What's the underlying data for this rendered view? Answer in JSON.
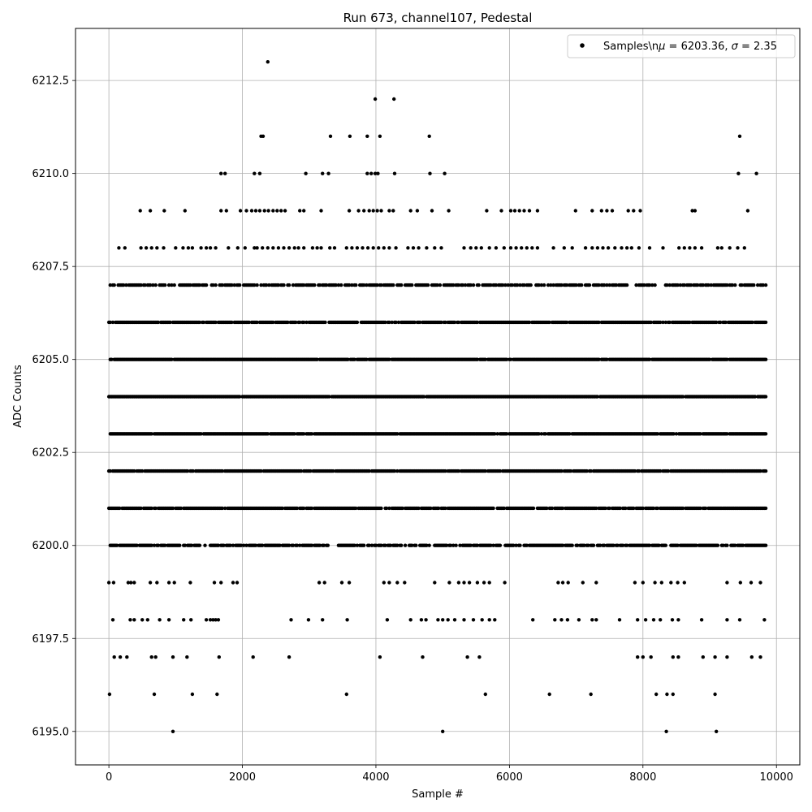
{
  "chart_data": {
    "type": "scatter",
    "title": "Run 673, channel107, Pedestal",
    "xlabel": "Sample #",
    "ylabel": "ADC Counts",
    "xlim": [
      -500,
      10350
    ],
    "ylim": [
      6194.1,
      6213.9
    ],
    "xticks": [
      0,
      2000,
      4000,
      6000,
      8000,
      10000
    ],
    "xtick_labels": [
      "0",
      "2000",
      "4000",
      "6000",
      "8000",
      "10000"
    ],
    "yticks": [
      6195.0,
      6197.5,
      6200.0,
      6202.5,
      6205.0,
      6207.5,
      6210.0,
      6212.5
    ],
    "ytick_labels": [
      "6195.0",
      "6197.5",
      "6200.0",
      "6202.5",
      "6205.0",
      "6207.5",
      "6210.0",
      "6212.5"
    ],
    "grid": true,
    "legend": {
      "position": "top-right",
      "marker_color": "#000000",
      "label": "Samples\\nμ = 6203.36, σ = 2.35"
    },
    "x_range": [
      0,
      9840
    ],
    "stats": {
      "mean": 6203.36,
      "sigma": 2.35
    },
    "series": [
      {
        "color": "#000000",
        "levels": [
          {
            "y": 6200,
            "density": 0.78
          },
          {
            "y": 6201,
            "density": 0.92
          },
          {
            "y": 6202,
            "density": 0.95
          },
          {
            "y": 6203,
            "density": 0.97
          },
          {
            "y": 6204,
            "density": 0.97
          },
          {
            "y": 6205,
            "density": 0.96
          },
          {
            "y": 6206,
            "density": 0.93
          },
          {
            "y": 6207,
            "density": 0.72
          }
        ],
        "points": [
          [
            10,
            6196
          ],
          [
            680,
            6196
          ],
          [
            1250,
            6196
          ],
          [
            1620,
            6196
          ],
          [
            3560,
            6196
          ],
          [
            5640,
            6196
          ],
          [
            6600,
            6196
          ],
          [
            7220,
            6196
          ],
          [
            8360,
            6196
          ],
          [
            8450,
            6196
          ],
          [
            8200,
            6196
          ],
          [
            9080,
            6196
          ],
          [
            960,
            6195
          ],
          [
            5000,
            6195
          ],
          [
            8350,
            6195
          ],
          [
            9100,
            6195
          ],
          [
            80,
            6197
          ],
          [
            170,
            6197
          ],
          [
            270,
            6197
          ],
          [
            640,
            6197
          ],
          [
            700,
            6197
          ],
          [
            960,
            6197
          ],
          [
            1170,
            6197
          ],
          [
            1650,
            6197
          ],
          [
            2160,
            6197
          ],
          [
            2700,
            6197
          ],
          [
            4060,
            6197
          ],
          [
            4700,
            6197
          ],
          [
            5370,
            6197
          ],
          [
            5550,
            6197
          ],
          [
            7920,
            6197
          ],
          [
            8000,
            6197
          ],
          [
            8120,
            6197
          ],
          [
            8450,
            6197
          ],
          [
            8530,
            6197
          ],
          [
            8900,
            6197
          ],
          [
            9080,
            6197
          ],
          [
            9260,
            6197
          ],
          [
            9630,
            6197
          ],
          [
            9760,
            6197
          ],
          [
            60,
            6198
          ],
          [
            320,
            6198
          ],
          [
            380,
            6198
          ],
          [
            500,
            6198
          ],
          [
            580,
            6198
          ],
          [
            760,
            6198
          ],
          [
            900,
            6198
          ],
          [
            1120,
            6198
          ],
          [
            1230,
            6198
          ],
          [
            1460,
            6198
          ],
          [
            1520,
            6198
          ],
          [
            1560,
            6198
          ],
          [
            1600,
            6198
          ],
          [
            1640,
            6198
          ],
          [
            2730,
            6198
          ],
          [
            2990,
            6198
          ],
          [
            3200,
            6198
          ],
          [
            3570,
            6198
          ],
          [
            4170,
            6198
          ],
          [
            4520,
            6198
          ],
          [
            4680,
            6198
          ],
          [
            4750,
            6198
          ],
          [
            4930,
            6198
          ],
          [
            5000,
            6198
          ],
          [
            5080,
            6198
          ],
          [
            5180,
            6198
          ],
          [
            5320,
            6198
          ],
          [
            5460,
            6198
          ],
          [
            5590,
            6198
          ],
          [
            5700,
            6198
          ],
          [
            5780,
            6198
          ],
          [
            6350,
            6198
          ],
          [
            6680,
            6198
          ],
          [
            6780,
            6198
          ],
          [
            6870,
            6198
          ],
          [
            7040,
            6198
          ],
          [
            7240,
            6198
          ],
          [
            7300,
            6198
          ],
          [
            7650,
            6198
          ],
          [
            7920,
            6198
          ],
          [
            8040,
            6198
          ],
          [
            8160,
            6198
          ],
          [
            8260,
            6198
          ],
          [
            8440,
            6198
          ],
          [
            8530,
            6198
          ],
          [
            8880,
            6198
          ],
          [
            9260,
            6198
          ],
          [
            9450,
            6198
          ],
          [
            9820,
            6198
          ],
          [
            0,
            6199
          ],
          [
            70,
            6199
          ],
          [
            290,
            6199
          ],
          [
            330,
            6199
          ],
          [
            380,
            6199
          ],
          [
            620,
            6199
          ],
          [
            720,
            6199
          ],
          [
            900,
            6199
          ],
          [
            980,
            6199
          ],
          [
            1220,
            6199
          ],
          [
            1580,
            6199
          ],
          [
            1680,
            6199
          ],
          [
            1860,
            6199
          ],
          [
            1920,
            6199
          ],
          [
            3150,
            6199
          ],
          [
            3230,
            6199
          ],
          [
            3490,
            6199
          ],
          [
            3600,
            6199
          ],
          [
            4120,
            6199
          ],
          [
            4200,
            6199
          ],
          [
            4320,
            6199
          ],
          [
            4430,
            6199
          ],
          [
            4880,
            6199
          ],
          [
            5100,
            6199
          ],
          [
            5240,
            6199
          ],
          [
            5320,
            6199
          ],
          [
            5400,
            6199
          ],
          [
            5520,
            6199
          ],
          [
            5620,
            6199
          ],
          [
            5700,
            6199
          ],
          [
            5930,
            6199
          ],
          [
            6730,
            6199
          ],
          [
            6800,
            6199
          ],
          [
            6880,
            6199
          ],
          [
            7100,
            6199
          ],
          [
            7300,
            6199
          ],
          [
            7880,
            6199
          ],
          [
            8000,
            6199
          ],
          [
            8180,
            6199
          ],
          [
            8280,
            6199
          ],
          [
            8420,
            6199
          ],
          [
            8520,
            6199
          ],
          [
            8620,
            6199
          ],
          [
            9260,
            6199
          ],
          [
            9460,
            6199
          ],
          [
            9620,
            6199
          ],
          [
            9760,
            6199
          ],
          [
            150,
            6208
          ],
          [
            240,
            6208
          ],
          [
            480,
            6208
          ],
          [
            560,
            6208
          ],
          [
            640,
            6208
          ],
          [
            720,
            6208
          ],
          [
            820,
            6208
          ],
          [
            1000,
            6208
          ],
          [
            1110,
            6208
          ],
          [
            1190,
            6208
          ],
          [
            1250,
            6208
          ],
          [
            1380,
            6208
          ],
          [
            1460,
            6208
          ],
          [
            1520,
            6208
          ],
          [
            1600,
            6208
          ],
          [
            1790,
            6208
          ],
          [
            1930,
            6208
          ],
          [
            2040,
            6208
          ],
          [
            2180,
            6208
          ],
          [
            2220,
            6208
          ],
          [
            2300,
            6208
          ],
          [
            2380,
            6208
          ],
          [
            2460,
            6208
          ],
          [
            2540,
            6208
          ],
          [
            2620,
            6208
          ],
          [
            2700,
            6208
          ],
          [
            2780,
            6208
          ],
          [
            2840,
            6208
          ],
          [
            2920,
            6208
          ],
          [
            3050,
            6208
          ],
          [
            3120,
            6208
          ],
          [
            3180,
            6208
          ],
          [
            3310,
            6208
          ],
          [
            3380,
            6208
          ],
          [
            3560,
            6208
          ],
          [
            3640,
            6208
          ],
          [
            3720,
            6208
          ],
          [
            3800,
            6208
          ],
          [
            3880,
            6208
          ],
          [
            3960,
            6208
          ],
          [
            4040,
            6208
          ],
          [
            4120,
            6208
          ],
          [
            4200,
            6208
          ],
          [
            4300,
            6208
          ],
          [
            4480,
            6208
          ],
          [
            4560,
            6208
          ],
          [
            4640,
            6208
          ],
          [
            4760,
            6208
          ],
          [
            4880,
            6208
          ],
          [
            4980,
            6208
          ],
          [
            5320,
            6208
          ],
          [
            5420,
            6208
          ],
          [
            5500,
            6208
          ],
          [
            5580,
            6208
          ],
          [
            5700,
            6208
          ],
          [
            5800,
            6208
          ],
          [
            5920,
            6208
          ],
          [
            6020,
            6208
          ],
          [
            6100,
            6208
          ],
          [
            6180,
            6208
          ],
          [
            6260,
            6208
          ],
          [
            6340,
            6208
          ],
          [
            6420,
            6208
          ],
          [
            6660,
            6208
          ],
          [
            6820,
            6208
          ],
          [
            6940,
            6208
          ],
          [
            7140,
            6208
          ],
          [
            7240,
            6208
          ],
          [
            7320,
            6208
          ],
          [
            7400,
            6208
          ],
          [
            7480,
            6208
          ],
          [
            7580,
            6208
          ],
          [
            7680,
            6208
          ],
          [
            7760,
            6208
          ],
          [
            7830,
            6208
          ],
          [
            7940,
            6208
          ],
          [
            8100,
            6208
          ],
          [
            8300,
            6208
          ],
          [
            8540,
            6208
          ],
          [
            8620,
            6208
          ],
          [
            8700,
            6208
          ],
          [
            8780,
            6208
          ],
          [
            8880,
            6208
          ],
          [
            9120,
            6208
          ],
          [
            9180,
            6208
          ],
          [
            9300,
            6208
          ],
          [
            9420,
            6208
          ],
          [
            9520,
            6208
          ],
          [
            470,
            6209
          ],
          [
            620,
            6209
          ],
          [
            830,
            6209
          ],
          [
            1140,
            6209
          ],
          [
            1680,
            6209
          ],
          [
            1760,
            6209
          ],
          [
            1970,
            6209
          ],
          [
            2060,
            6209
          ],
          [
            2140,
            6209
          ],
          [
            2200,
            6209
          ],
          [
            2260,
            6209
          ],
          [
            2330,
            6209
          ],
          [
            2390,
            6209
          ],
          [
            2460,
            6209
          ],
          [
            2520,
            6209
          ],
          [
            2580,
            6209
          ],
          [
            2640,
            6209
          ],
          [
            2860,
            6209
          ],
          [
            2920,
            6209
          ],
          [
            3180,
            6209
          ],
          [
            3600,
            6209
          ],
          [
            3740,
            6209
          ],
          [
            3820,
            6209
          ],
          [
            3900,
            6209
          ],
          [
            3960,
            6209
          ],
          [
            4020,
            6209
          ],
          [
            4080,
            6209
          ],
          [
            4200,
            6209
          ],
          [
            4260,
            6209
          ],
          [
            4520,
            6209
          ],
          [
            4620,
            6209
          ],
          [
            4840,
            6209
          ],
          [
            5090,
            6209
          ],
          [
            5660,
            6209
          ],
          [
            5880,
            6209
          ],
          [
            6020,
            6209
          ],
          [
            6080,
            6209
          ],
          [
            6150,
            6209
          ],
          [
            6220,
            6209
          ],
          [
            6300,
            6209
          ],
          [
            6420,
            6209
          ],
          [
            6990,
            6209
          ],
          [
            7240,
            6209
          ],
          [
            7380,
            6209
          ],
          [
            7460,
            6209
          ],
          [
            7540,
            6209
          ],
          [
            7780,
            6209
          ],
          [
            7860,
            6209
          ],
          [
            7960,
            6209
          ],
          [
            8740,
            6209
          ],
          [
            8780,
            6209
          ],
          [
            9570,
            6209
          ],
          [
            1680,
            6210
          ],
          [
            1740,
            6210
          ],
          [
            2180,
            6210
          ],
          [
            2260,
            6210
          ],
          [
            2950,
            6210
          ],
          [
            3200,
            6210
          ],
          [
            3290,
            6210
          ],
          [
            3870,
            6210
          ],
          [
            3930,
            6210
          ],
          [
            3990,
            6210
          ],
          [
            4030,
            6210
          ],
          [
            4280,
            6210
          ],
          [
            4810,
            6210
          ],
          [
            5030,
            6210
          ],
          [
            9430,
            6210
          ],
          [
            9700,
            6210
          ],
          [
            2280,
            6211
          ],
          [
            2310,
            6211
          ],
          [
            3320,
            6211
          ],
          [
            3610,
            6211
          ],
          [
            3870,
            6211
          ],
          [
            4060,
            6211
          ],
          [
            4800,
            6211
          ],
          [
            9450,
            6211
          ],
          [
            3990,
            6212
          ],
          [
            4270,
            6212
          ],
          [
            2380,
            6213
          ]
        ]
      }
    ]
  }
}
